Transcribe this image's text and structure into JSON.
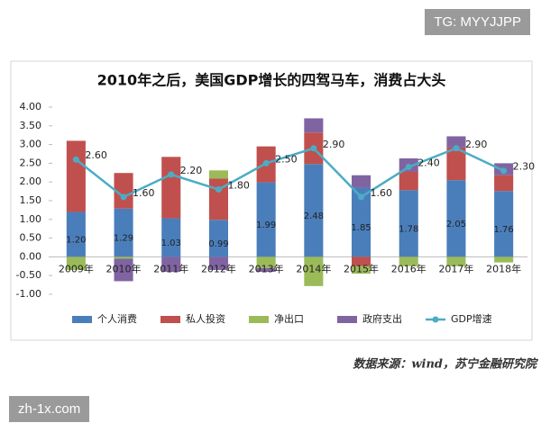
{
  "chart_data": {
    "type": "bar",
    "stacked": true,
    "title": "2010年之后，美国GDP增长的四驾马车，消费占大头",
    "source": "数据来源：wind，苏宁金融研究院",
    "categories": [
      "2009年",
      "2010年",
      "2011年",
      "2012年",
      "2013年",
      "2014年",
      "2015年",
      "2016年",
      "2017年",
      "2018年"
    ],
    "ylim": [
      -1,
      4
    ],
    "yticks": [
      {
        "value": -1,
        "label": "-1.00"
      },
      {
        "value": -0.5,
        "label": "-0.50"
      },
      {
        "value": 0,
        "label": "0.00"
      },
      {
        "value": 0.5,
        "label": "0.50"
      },
      {
        "value": 1,
        "label": "1.00"
      },
      {
        "value": 1.5,
        "label": "1.50"
      },
      {
        "value": 2,
        "label": "2.00"
      },
      {
        "value": 2.5,
        "label": "2.50"
      },
      {
        "value": 3,
        "label": "3.00"
      },
      {
        "value": 3.5,
        "label": "3.50"
      },
      {
        "value": 4,
        "label": "4.00"
      }
    ],
    "legend": "bottom",
    "series": [
      {
        "name": "个人消费",
        "color": "#4a7ebb",
        "values": [
          1.2,
          1.29,
          1.03,
          0.99,
          1.99,
          2.48,
          1.85,
          1.78,
          2.05,
          1.76
        ],
        "value_labels": [
          "1.20",
          "1.29",
          "1.03",
          "0.99",
          "1.99",
          "2.48",
          "1.85",
          "1.78",
          "2.05",
          "1.76"
        ]
      },
      {
        "name": "私人投资",
        "color": "#c0504d",
        "values": [
          1.9,
          0.95,
          1.64,
          1.1,
          0.96,
          0.84,
          -0.25,
          0.5,
          0.87,
          0.42
        ]
      },
      {
        "name": "净出口",
        "color": "#9bbb59",
        "values": [
          -0.35,
          -0.05,
          0,
          0.22,
          -0.3,
          -0.78,
          -0.2,
          -0.25,
          -0.25,
          -0.15
        ]
      },
      {
        "name": "政府支出",
        "color": "#8064a2",
        "values": [
          0,
          -0.6,
          -0.4,
          -0.35,
          -0.1,
          0.38,
          0.33,
          0.35,
          0.3,
          0.32
        ]
      },
      {
        "name": "GDP增速",
        "type": "line",
        "color": "#4bacc6",
        "values": [
          2.6,
          1.6,
          2.2,
          1.8,
          2.5,
          2.9,
          1.6,
          2.4,
          2.9,
          2.3
        ],
        "value_labels": [
          "2.60",
          "1.60",
          "2.20",
          "1.80",
          "2.50",
          "2.90",
          "1.60",
          "2.40",
          "2.90",
          "2.30"
        ]
      }
    ]
  },
  "watermarks": [
    "TG: MYYJJPP",
    "zh-1x.com"
  ]
}
